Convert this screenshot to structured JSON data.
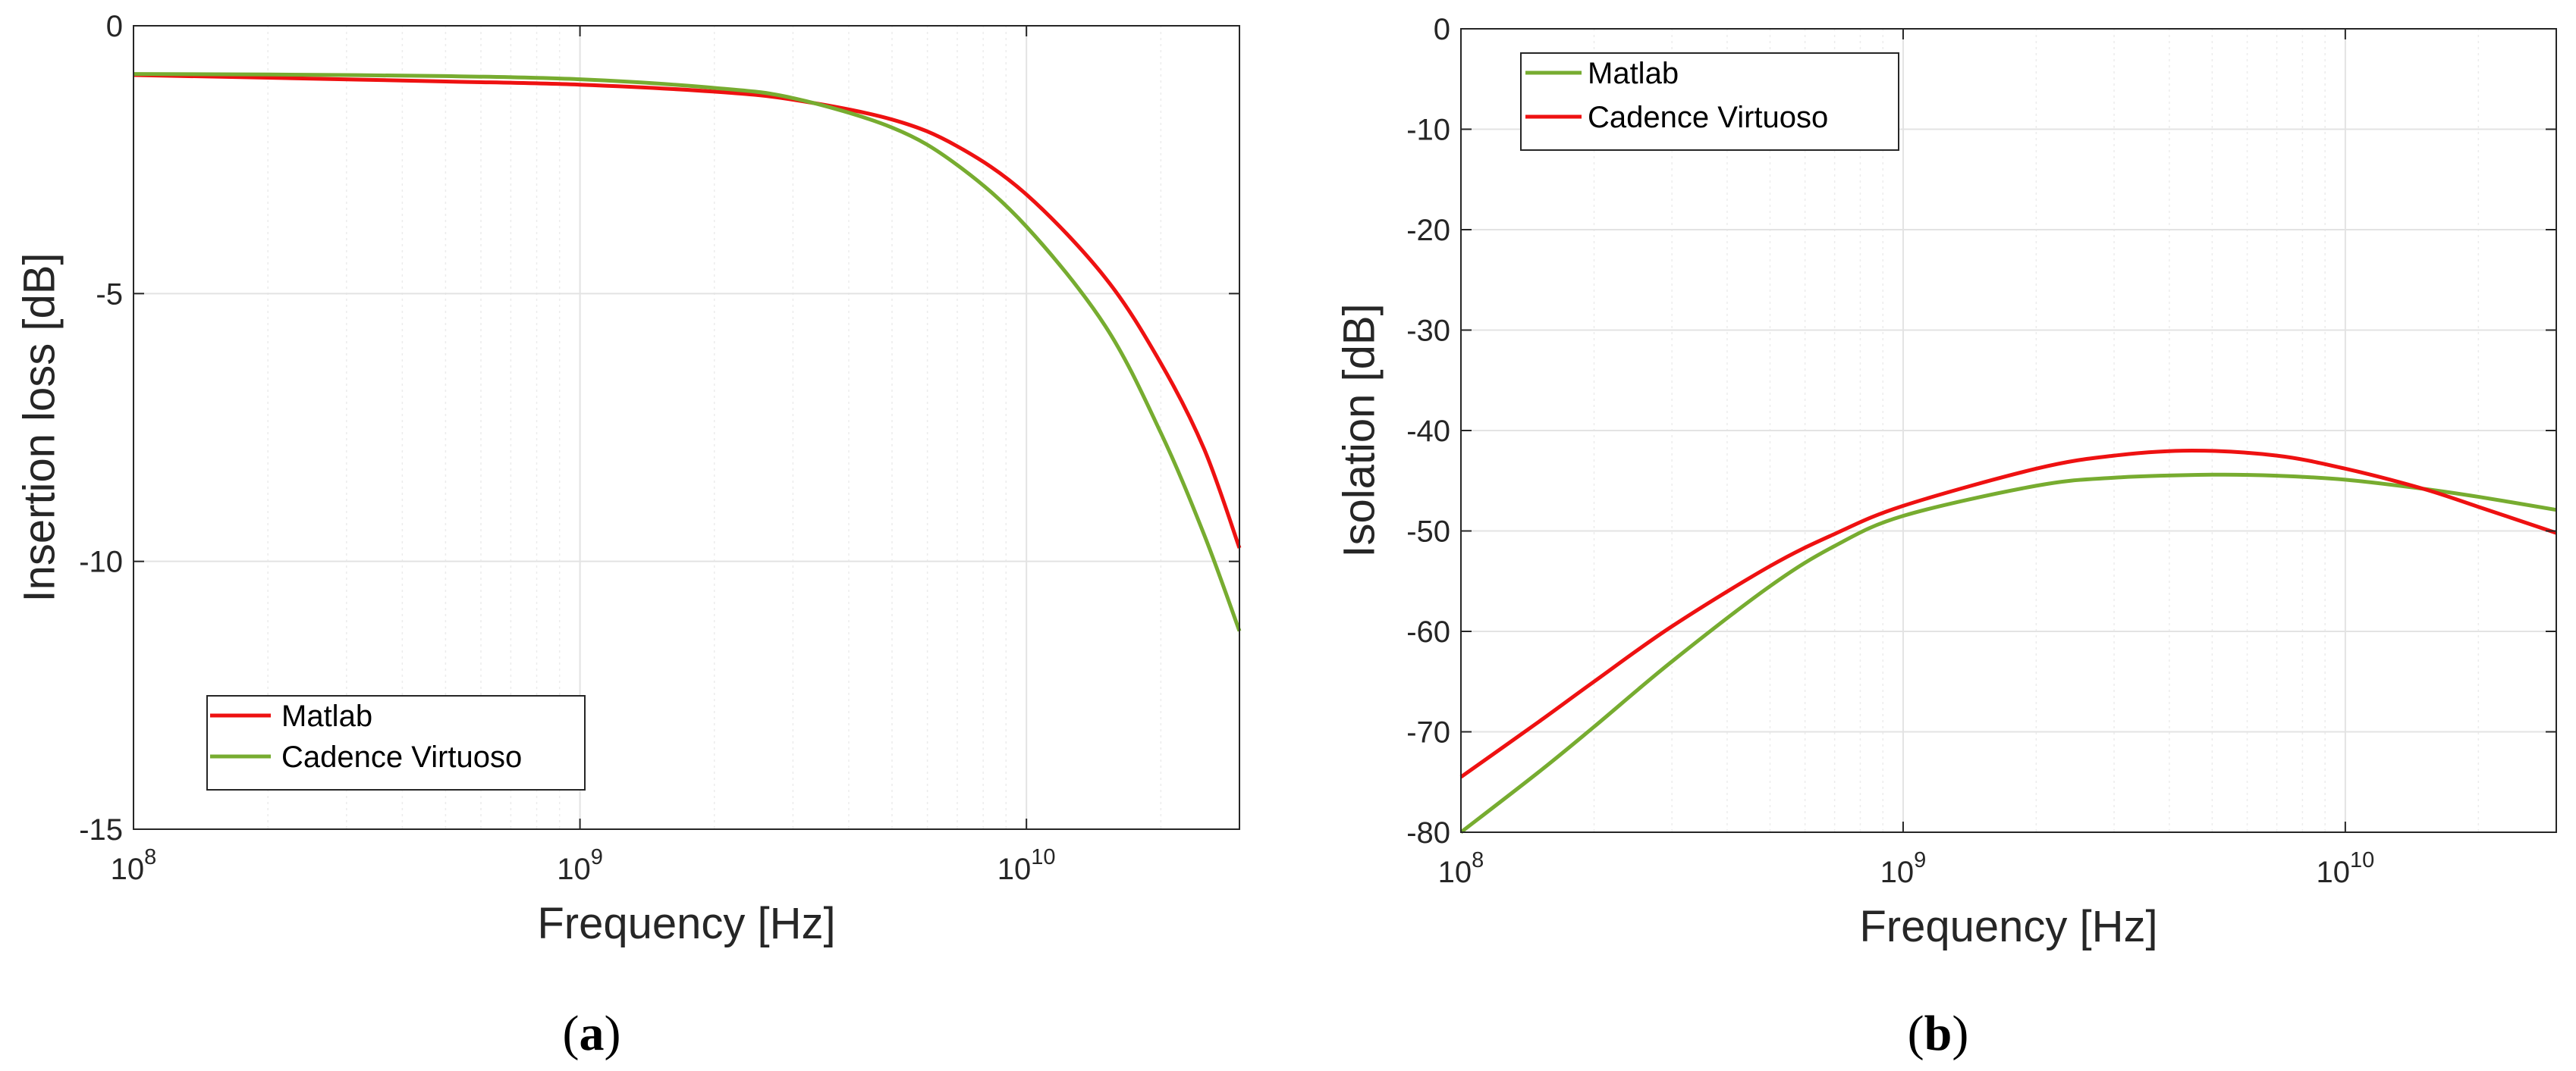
{
  "colors": {
    "matlab_red": "#ee1111",
    "cadence_green": "#77ac30",
    "grid": "#e3e3e3",
    "axis": "#262626"
  },
  "chart_data": [
    {
      "type": "line",
      "panel": "a",
      "caption_open": "(",
      "caption_letter": "a",
      "caption_close": ")",
      "xlabel": "Frequency [Hz]",
      "ylabel": "Insertion loss [dB]",
      "xscale": "log",
      "xlim": [
        100000000,
        30000000000
      ],
      "ylim": [
        -15,
        0
      ],
      "xticks": [
        {
          "value": 100000000,
          "base": "10",
          "exp": "8"
        },
        {
          "value": 1000000000,
          "base": "10",
          "exp": "9"
        },
        {
          "value": 10000000000,
          "base": "10",
          "exp": "10"
        }
      ],
      "yticks": [
        {
          "value": 0,
          "label": "0"
        },
        {
          "value": -5,
          "label": "-5"
        },
        {
          "value": -10,
          "label": "-10"
        },
        {
          "value": -15,
          "label": "-15"
        }
      ],
      "grid": true,
      "legend_position": "lower-left",
      "series": [
        {
          "name": "Matlab",
          "color": "#ee1111",
          "x": [
            100000000,
            200000000,
            500000000,
            1000000000,
            2000000000,
            3000000000,
            5000000000,
            7000000000,
            10000000000,
            15000000000,
            20000000000,
            25000000000,
            30000000000
          ],
          "y": [
            -0.92,
            -0.97,
            -1.04,
            -1.1,
            -1.23,
            -1.38,
            -1.75,
            -2.25,
            -3.15,
            -4.7,
            -6.3,
            -7.9,
            -9.75
          ]
        },
        {
          "name": "Cadence Virtuoso",
          "color": "#77ac30",
          "x": [
            100000000,
            200000000,
            500000000,
            1000000000,
            2000000000,
            3000000000,
            5000000000,
            7000000000,
            10000000000,
            15000000000,
            20000000000,
            25000000000,
            30000000000
          ],
          "y": [
            -0.9,
            -0.91,
            -0.94,
            -1.0,
            -1.16,
            -1.35,
            -1.9,
            -2.6,
            -3.75,
            -5.6,
            -7.6,
            -9.5,
            -11.3
          ]
        }
      ]
    },
    {
      "type": "line",
      "panel": "b",
      "caption_open": "(",
      "caption_letter": "b",
      "caption_close": ")",
      "xlabel": "Frequency [Hz]",
      "ylabel": "Isolation [dB]",
      "xscale": "log",
      "xlim": [
        100000000,
        30000000000
      ],
      "ylim": [
        -80,
        0
      ],
      "xticks": [
        {
          "value": 100000000,
          "base": "10",
          "exp": "8"
        },
        {
          "value": 1000000000,
          "base": "10",
          "exp": "9"
        },
        {
          "value": 10000000000,
          "base": "10",
          "exp": "10"
        }
      ],
      "yticks": [
        {
          "value": 0,
          "label": "0"
        },
        {
          "value": -10,
          "label": "-10"
        },
        {
          "value": -20,
          "label": "-20"
        },
        {
          "value": -30,
          "label": "-30"
        },
        {
          "value": -40,
          "label": "-40"
        },
        {
          "value": -50,
          "label": "-50"
        },
        {
          "value": -60,
          "label": "-60"
        },
        {
          "value": -70,
          "label": "-70"
        },
        {
          "value": -80,
          "label": "-80"
        }
      ],
      "grid": true,
      "legend_position": "top-left",
      "series": [
        {
          "name": "Matlab",
          "color": "#77ac30",
          "x": [
            100000000,
            150000000,
            200000000,
            300000000,
            500000000,
            700000000,
            1000000000,
            2000000000,
            3000000000,
            5000000000,
            7000000000,
            10000000000,
            15000000000,
            20000000000,
            30000000000
          ],
          "y": [
            -80,
            -74,
            -69.5,
            -63,
            -55.5,
            -51.5,
            -48.5,
            -45.5,
            -44.7,
            -44.4,
            -44.5,
            -44.9,
            -45.8,
            -46.6,
            -47.9
          ]
        },
        {
          "name": "Cadence Virtuoso",
          "color": "#ee1111",
          "x": [
            100000000,
            150000000,
            200000000,
            300000000,
            500000000,
            700000000,
            1000000000,
            2000000000,
            3000000000,
            4500000000,
            7000000000,
            10000000000,
            15000000000,
            20000000000,
            30000000000
          ],
          "y": [
            -74.5,
            -69,
            -65,
            -59.5,
            -53.5,
            -50.3,
            -47.5,
            -43.8,
            -42.5,
            -42,
            -42.5,
            -43.8,
            -45.8,
            -47.6,
            -50.2
          ]
        }
      ]
    }
  ]
}
